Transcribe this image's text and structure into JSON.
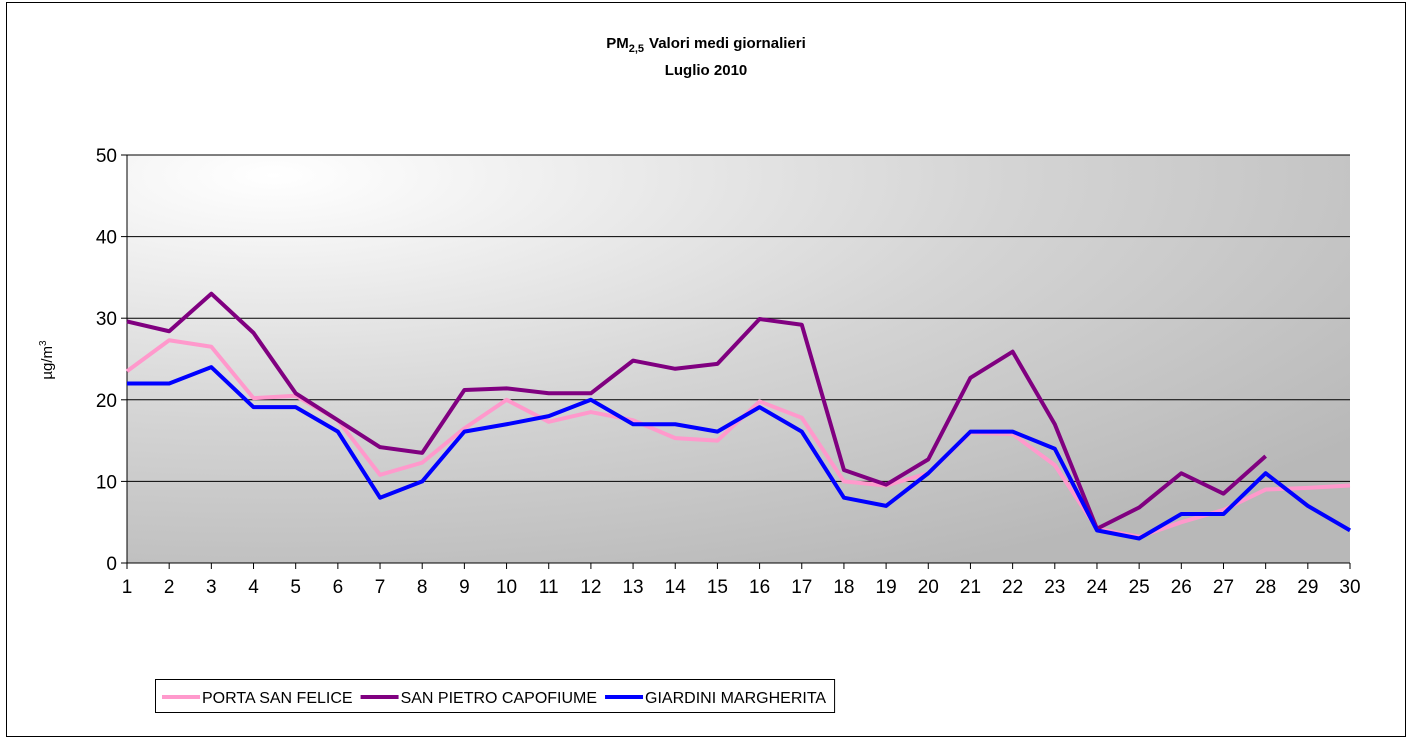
{
  "chart_data": {
    "type": "line",
    "title": [
      "PM",
      "2,5",
      "Valori medi giornalieri"
    ],
    "subtitle": "Luglio 2010",
    "y_label": [
      "µg/m",
      "3"
    ],
    "categories": [
      "1",
      "2",
      "3",
      "4",
      "5",
      "6",
      "7",
      "8",
      "9",
      "10",
      "11",
      "12",
      "13",
      "14",
      "15",
      "16",
      "17",
      "18",
      "19",
      "20",
      "21",
      "22",
      "23",
      "24",
      "25",
      "26",
      "27",
      "28",
      "29",
      "30"
    ],
    "series": [
      {
        "name": "PORTA SAN FELICE",
        "color": "#ff99cc",
        "values": [
          23.5,
          27.3,
          26.5,
          20.2,
          20.5,
          17.5,
          10.8,
          12.3,
          16.5,
          20,
          17.3,
          18.5,
          17.5,
          15.3,
          15,
          19.8,
          17.8,
          10,
          9.5,
          11,
          16,
          15.8,
          12,
          4.2,
          3.2,
          5,
          6.5,
          9,
          9.2,
          9.5
        ]
      },
      {
        "name": "SAN PIETRO CAPOFIUME",
        "color": "#800080",
        "values": [
          29.6,
          28.4,
          33,
          28.2,
          20.8,
          17.5,
          14.2,
          13.5,
          21.2,
          21.4,
          20.8,
          20.8,
          24.8,
          23.8,
          24.4,
          29.9,
          29.2,
          11.4,
          9.6,
          12.7,
          22.7,
          25.9,
          17,
          4.2,
          6.8,
          11,
          8.5,
          13.1,
          null,
          null
        ]
      },
      {
        "name": "GIARDINI MARGHERITA",
        "color": "#0000ff",
        "values": [
          22,
          22,
          24,
          19.1,
          19.1,
          16.1,
          8,
          10,
          16.1,
          17,
          18,
          20,
          17,
          17,
          16.1,
          19.1,
          16.1,
          8,
          7,
          11,
          16.1,
          16.1,
          14,
          4,
          3,
          6,
          6,
          11,
          7,
          4
        ]
      }
    ],
    "ylim": [
      0,
      50
    ],
    "yticks": [
      0,
      10,
      20,
      30,
      40,
      50
    ],
    "grid": true,
    "legend": "bottom"
  }
}
